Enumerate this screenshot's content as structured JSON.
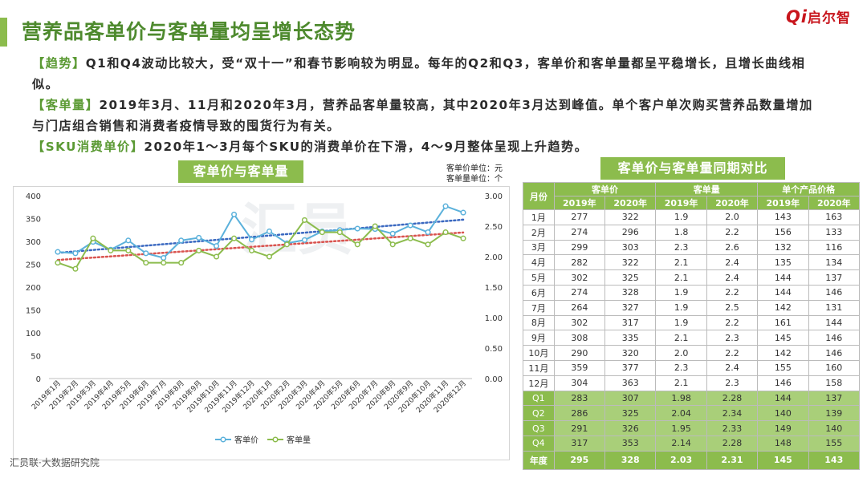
{
  "header": {
    "title": "营养品客单价与客单量均呈增长态势",
    "logo_q": "Qi",
    "logo_text": "启尔智"
  },
  "description": [
    {
      "tag": "【趋势】",
      "text": "Q1和Q4波动比较大，受“双十一”和春节影响较为明显。每年的Q2和Q3，客单价和客单量都呈平稳增长，且增长曲线相似。"
    },
    {
      "tag": "【客单量】",
      "text": "2019年3月、11月和2020年3月，营养品客单量较高，其中2020年3月达到峰值。单个客户单次购买营养品数量增加与门店组合销售和消费者疫情导致的囤货行为有关。"
    },
    {
      "tag": "【SKU消费单价】",
      "text": "2020年1～3月每个SKU的消费单价在下滑，4～9月整体呈现上升趋势。"
    }
  ],
  "chart_title": "客单价与客单量",
  "units": {
    "line1": "客单价单位：元",
    "line2": "客单量单位：个"
  },
  "chart_data": {
    "type": "line",
    "categories": [
      "2019年1月",
      "2019年2月",
      "2019年3月",
      "2019年4月",
      "2019年5月",
      "2019年6月",
      "2019年7月",
      "2019年8月",
      "2019年9月",
      "2019年10月",
      "2019年11月",
      "2019年12月",
      "2020年1月",
      "2020年2月",
      "2020年3月",
      "2020年4月",
      "2020年5月",
      "2020年6月",
      "2020年7月",
      "2020年8月",
      "2020年9月",
      "2020年10月",
      "2020年11月",
      "2020年12月"
    ],
    "series": [
      {
        "name": "客单价",
        "axis": "left",
        "color": "#5bb1db",
        "values": [
          277,
          274,
          299,
          282,
          302,
          274,
          264,
          302,
          308,
          290,
          359,
          304,
          322,
          296,
          303,
          322,
          325,
          328,
          327,
          317,
          335,
          320,
          377,
          363
        ]
      },
      {
        "name": "客单量",
        "axis": "right",
        "color": "#8cbc4d",
        "values": [
          1.9,
          1.8,
          2.3,
          2.1,
          2.1,
          1.9,
          1.9,
          1.9,
          2.1,
          2.0,
          2.3,
          2.1,
          2.0,
          2.2,
          2.6,
          2.4,
          2.4,
          2.2,
          2.5,
          2.2,
          2.3,
          2.2,
          2.4,
          2.3
        ]
      }
    ],
    "trendlines": [
      {
        "of": "客单价",
        "color": "#3a68c0"
      },
      {
        "of": "客单量",
        "color": "#d9534f"
      }
    ],
    "left_axis": {
      "ylim": [
        0,
        400
      ],
      "ticks": [
        "0",
        "50",
        "100",
        "150",
        "200",
        "250",
        "300",
        "350",
        "400"
      ]
    },
    "right_axis": {
      "ylim": [
        0,
        3.0
      ],
      "ticks": [
        "0.00",
        "0.50",
        "1.00",
        "1.50",
        "2.00",
        "2.50",
        "3.00"
      ]
    },
    "legend_position": "bottom"
  },
  "table": {
    "title": "客单价与客单量同期对比",
    "header_month": "月份",
    "groups": [
      "客单价",
      "客单量",
      "单个产品价格"
    ],
    "years": [
      "2019年",
      "2020年"
    ],
    "rows": [
      [
        "1月",
        "277",
        "322",
        "1.9",
        "2.0",
        "143",
        "163"
      ],
      [
        "2月",
        "274",
        "296",
        "1.8",
        "2.2",
        "156",
        "133"
      ],
      [
        "3月",
        "299",
        "303",
        "2.3",
        "2.6",
        "132",
        "116"
      ],
      [
        "4月",
        "282",
        "322",
        "2.1",
        "2.4",
        "135",
        "134"
      ],
      [
        "5月",
        "302",
        "325",
        "2.1",
        "2.4",
        "144",
        "137"
      ],
      [
        "6月",
        "274",
        "328",
        "1.9",
        "2.2",
        "144",
        "146"
      ],
      [
        "7月",
        "264",
        "327",
        "1.9",
        "2.5",
        "142",
        "131"
      ],
      [
        "8月",
        "302",
        "317",
        "1.9",
        "2.2",
        "161",
        "144"
      ],
      [
        "9月",
        "308",
        "335",
        "2.1",
        "2.3",
        "145",
        "146"
      ],
      [
        "10月",
        "290",
        "320",
        "2.0",
        "2.2",
        "142",
        "146"
      ],
      [
        "11月",
        "359",
        "377",
        "2.3",
        "2.4",
        "155",
        "160"
      ],
      [
        "12月",
        "304",
        "363",
        "2.1",
        "2.3",
        "146",
        "158"
      ]
    ],
    "quarter_rows": [
      [
        "Q1",
        "283",
        "307",
        "1.98",
        "2.28",
        "144",
        "137"
      ],
      [
        "Q2",
        "286",
        "325",
        "2.04",
        "2.34",
        "140",
        "139"
      ],
      [
        "Q3",
        "291",
        "326",
        "1.95",
        "2.33",
        "149",
        "140"
      ],
      [
        "Q4",
        "317",
        "353",
        "2.14",
        "2.28",
        "148",
        "155"
      ]
    ],
    "year_row": [
      "年度",
      "295",
      "328",
      "2.03",
      "2.31",
      "145",
      "143"
    ]
  },
  "footer": "汇员联·大数据研究院",
  "watermark": "汇员"
}
